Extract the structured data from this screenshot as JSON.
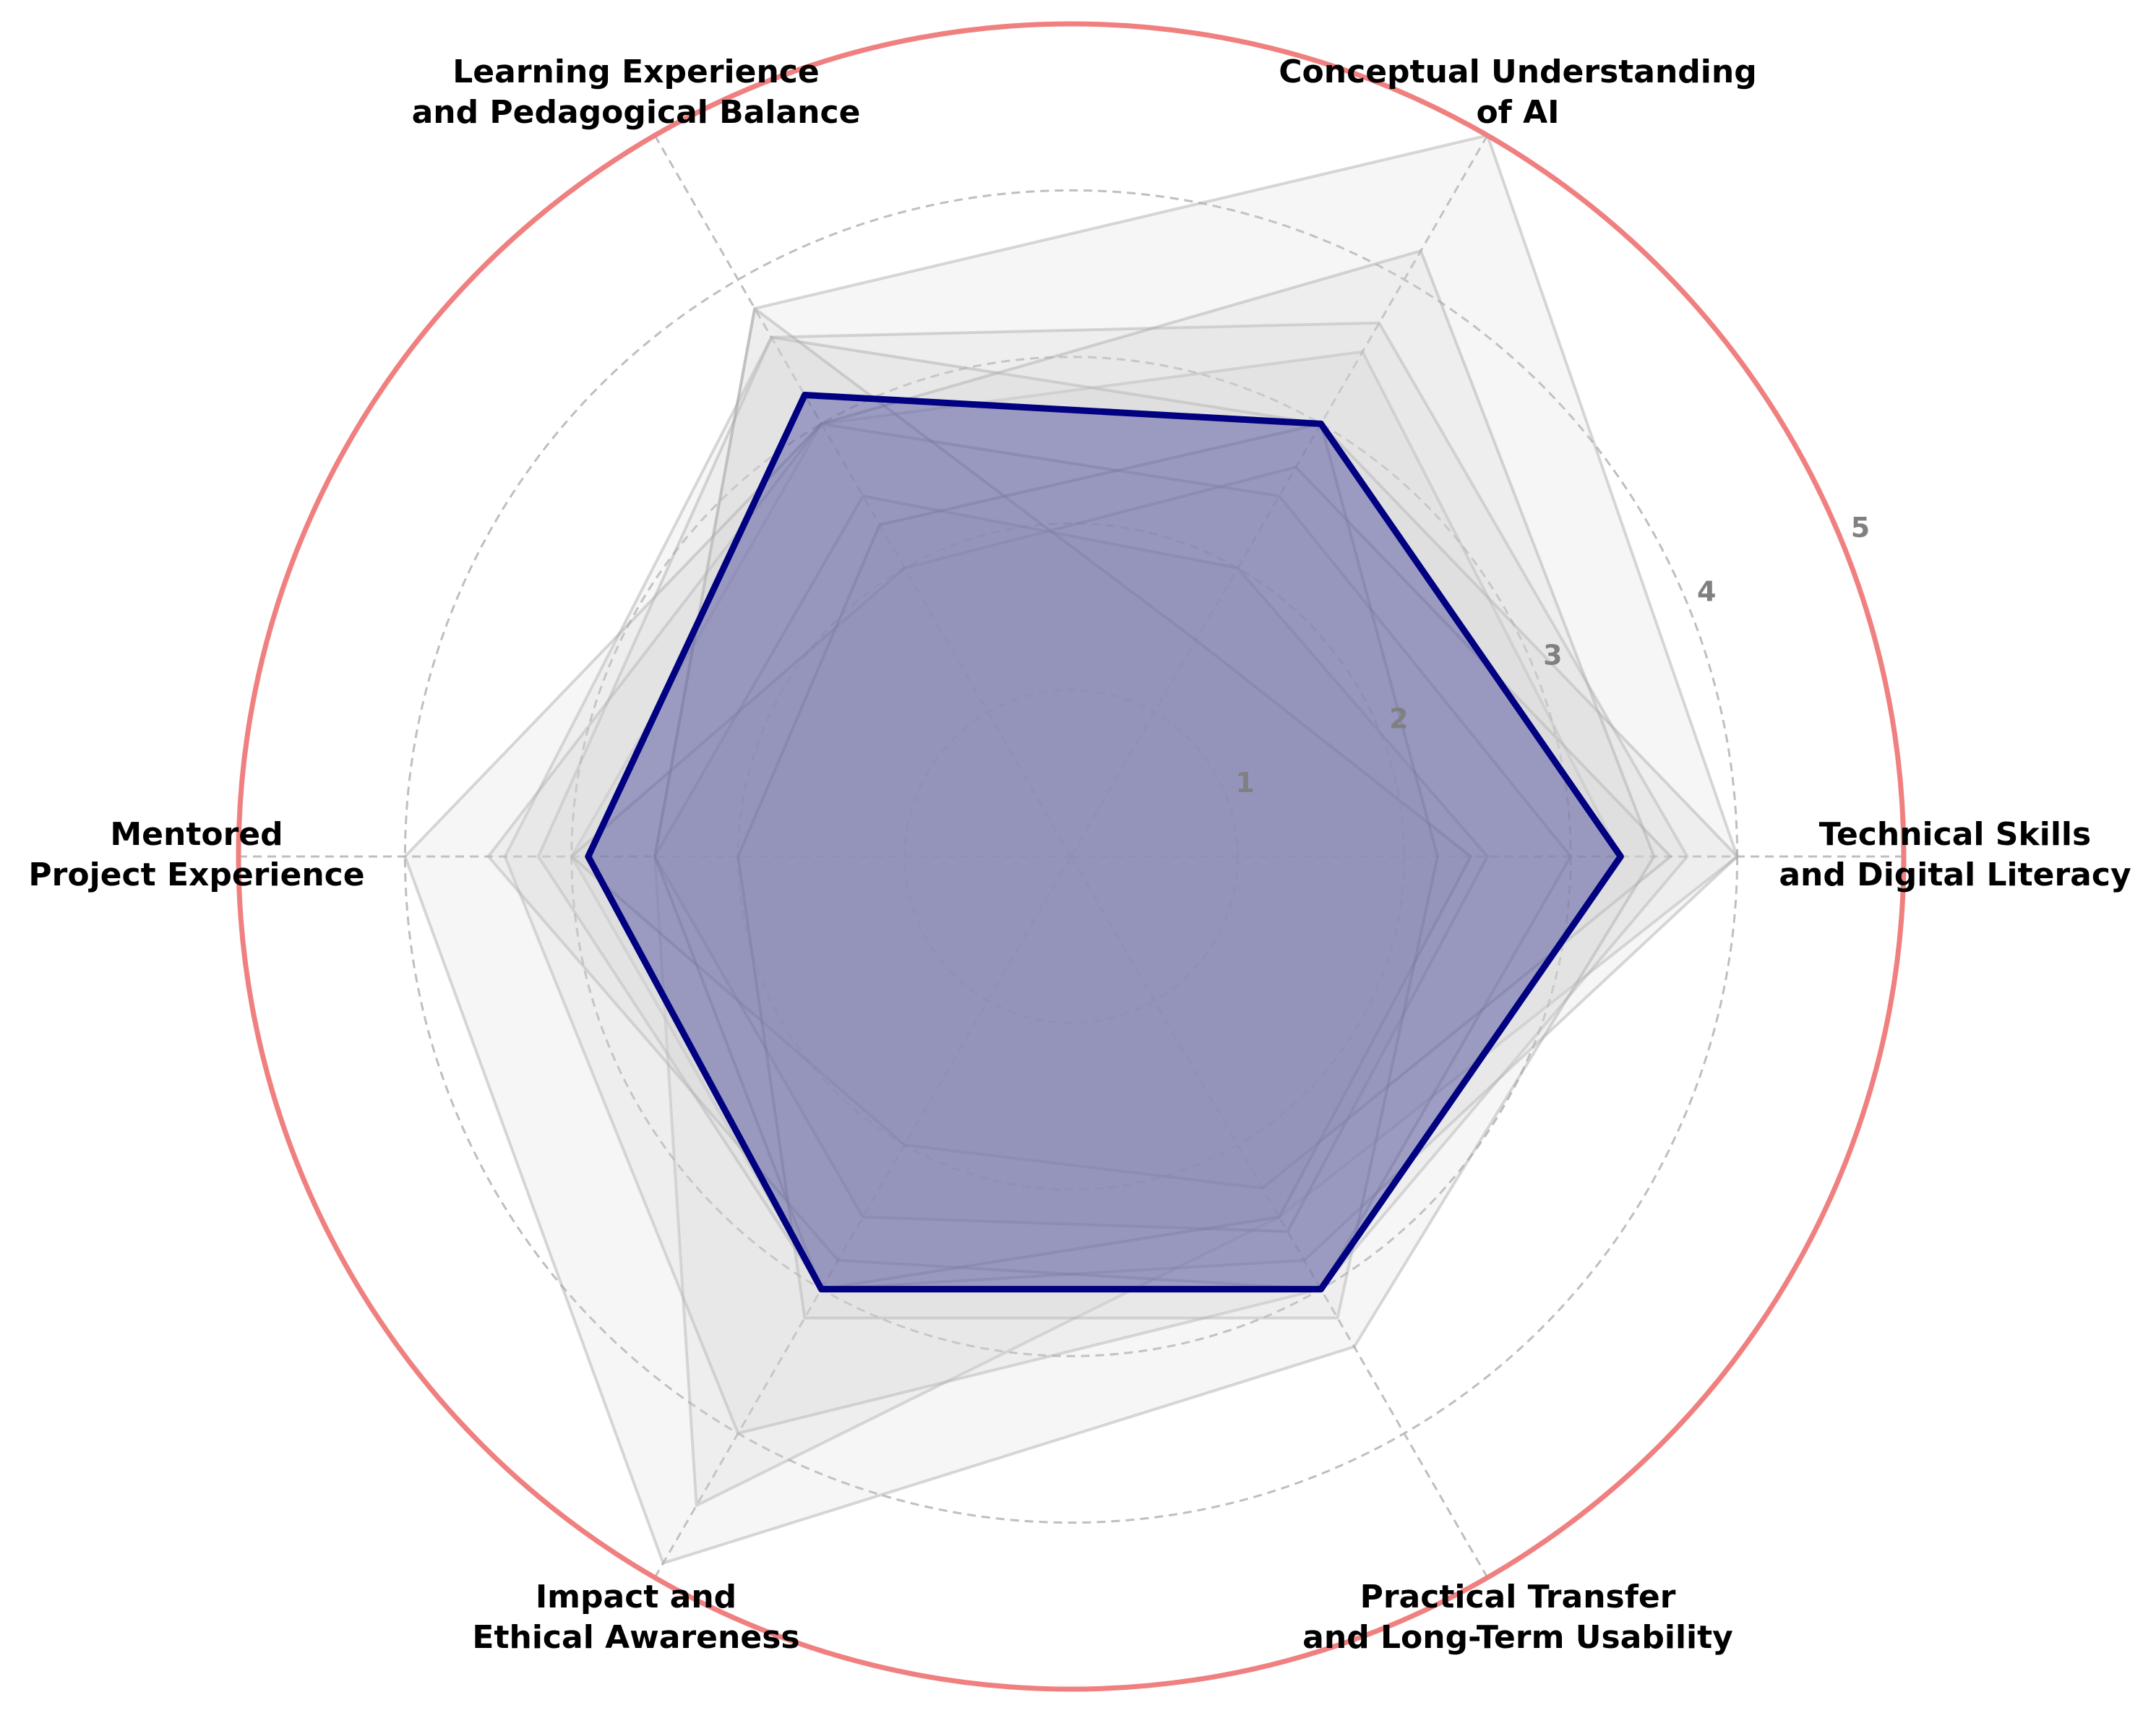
{
  "chart_data": {
    "type": "radar",
    "title": "",
    "axes": [
      [
        "Technical Skills",
        "and Digital Literacy"
      ],
      [
        "Conceptual Understanding",
        "of AI"
      ],
      [
        "Learning Experience",
        "and Pedagogical Balance"
      ],
      [
        "Mentored",
        "Project Experience"
      ],
      [
        "Impact and",
        "Ethical Awareness"
      ],
      [
        "Practical Transfer",
        "and Long-Term Usability"
      ]
    ],
    "rlim": [
      0,
      5
    ],
    "rticks": [
      1,
      2,
      3,
      4,
      5
    ],
    "rtick_labels": [
      "1",
      "2",
      "3",
      "4",
      "5"
    ],
    "grid": true,
    "grid_style": "dashed",
    "background_series": [
      {
        "values": [
          4.0,
          5.0,
          3.8,
          2.5,
          4.5,
          2.5
        ]
      },
      {
        "values": [
          3.3,
          3.5,
          3.0,
          3.0,
          3.0,
          3.0
        ]
      },
      {
        "values": [
          3.7,
          3.7,
          3.6,
          3.4,
          4.0,
          3.0
        ]
      },
      {
        "values": [
          4.0,
          3.0,
          3.6,
          3.2,
          3.0,
          2.8
        ]
      },
      {
        "values": [
          3.0,
          2.5,
          3.0,
          3.5,
          2.8,
          3.0
        ]
      },
      {
        "values": [
          2.5,
          2.0,
          2.5,
          2.5,
          2.5,
          2.6
        ]
      },
      {
        "values": [
          3.6,
          2.7,
          2.0,
          3.0,
          2.0,
          2.3
        ]
      },
      {
        "values": [
          2.4,
          1.5,
          3.8,
          2.5,
          3.0,
          2.5
        ]
      },
      {
        "values": [
          2.2,
          3.0,
          2.3,
          2.0,
          3.2,
          3.2
        ]
      },
      {
        "values": [
          3.5,
          4.2,
          3.0,
          4.0,
          4.9,
          3.4
        ]
      }
    ],
    "highlight_series": {
      "values": [
        3.3,
        3.0,
        3.2,
        2.9,
        3.0,
        3.0
      ]
    },
    "colors": {
      "background_fill": "#d3d3d3",
      "background_line": "#a9a9a9",
      "highlight_fill": "#000080",
      "highlight_line": "#000080",
      "outer_ring": "#f08080",
      "grid": "#bfbfbf",
      "tick_label": "#808080"
    }
  }
}
